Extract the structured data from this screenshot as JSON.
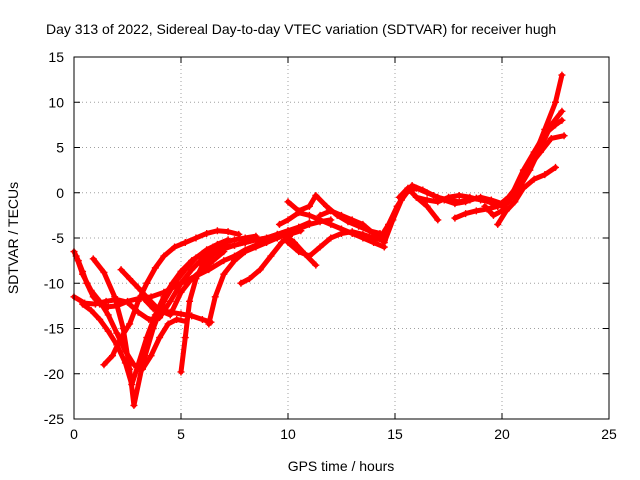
{
  "chart_data": {
    "type": "scatter",
    "title": "Day 313 of 2022, Sidereal Day-to-day VTEC variation (SDTVAR) for receiver hugh",
    "xlabel": "GPS time / hours",
    "ylabel": "SDTVAR / TECUs",
    "xlim": [
      0,
      25
    ],
    "ylim": [
      -25,
      15
    ],
    "xticks": [
      0,
      5,
      10,
      15,
      20,
      25
    ],
    "yticks": [
      -25,
      -20,
      -15,
      -10,
      -5,
      0,
      5,
      10,
      15
    ],
    "grid": true,
    "marker": "+",
    "color": "#ff0000",
    "series": [
      {
        "x": [
          0.0,
          0.2,
          0.4,
          0.6,
          0.9,
          1.2,
          1.6,
          2.0,
          2.5,
          3.0,
          3.6,
          4.2,
          5.0,
          5.7,
          6.3,
          7.0,
          7.5,
          8.0,
          8.5,
          9.0,
          9.5,
          10.0,
          10.5
        ],
        "y": [
          -6.5,
          -7.5,
          -8.7,
          -10.0,
          -11.5,
          -12.3,
          -12.6,
          -12.5,
          -12.0,
          -11.7,
          -11.5,
          -11.0,
          -10.0,
          -9.2,
          -8.5,
          -7.5,
          -7.0,
          -6.3,
          -5.8,
          -5.3,
          -5.0,
          -4.5,
          -4.0
        ]
      },
      {
        "x": [
          0.0,
          0.5,
          1.0,
          1.5,
          2.0,
          2.5,
          3.0,
          3.5,
          4.0,
          4.5,
          5.0,
          5.5,
          6.0,
          6.5,
          7.0,
          7.5,
          8.0,
          8.5,
          9.0,
          9.5,
          10.0
        ],
        "y": [
          -11.5,
          -12.2,
          -12.3,
          -12.0,
          -11.8,
          -12.1,
          -13.2,
          -14.0,
          -13.8,
          -12.0,
          -10.0,
          -8.5,
          -7.3,
          -6.5,
          -6.0,
          -5.8,
          -5.5,
          -5.2,
          -5.0,
          -4.6,
          -4.2
        ]
      },
      {
        "x": [
          0.1,
          0.4,
          0.8,
          1.2,
          1.6,
          2.0,
          2.4,
          2.8,
          3.2,
          3.6,
          4.0,
          4.4,
          4.8,
          5.2
        ],
        "y": [
          -7.0,
          -9.0,
          -10.8,
          -12.0,
          -13.5,
          -15.5,
          -17.5,
          -19.0,
          -19.5,
          -18.0,
          -16.0,
          -14.5,
          -14.0,
          -14.2
        ]
      },
      {
        "x": [
          0.4,
          0.8,
          1.2,
          1.6,
          2.0,
          2.4,
          2.7,
          3.0,
          3.4,
          3.8,
          4.2,
          4.6,
          5.0,
          5.5,
          6.0,
          6.5,
          7.0,
          7.5,
          8.0,
          8.5
        ],
        "y": [
          -12.3,
          -13.0,
          -14.0,
          -15.3,
          -16.8,
          -18.8,
          -21.2,
          -19.0,
          -16.0,
          -13.5,
          -11.5,
          -10.0,
          -8.7,
          -7.5,
          -6.7,
          -6.0,
          -5.5,
          -5.2,
          -5.0,
          -4.8
        ]
      },
      {
        "x": [
          0.9,
          1.4,
          1.9,
          2.3,
          2.6,
          2.8,
          3.2,
          3.7,
          4.2,
          4.7,
          5.2,
          5.7,
          6.2,
          6.7,
          7.2
        ],
        "y": [
          -7.3,
          -8.8,
          -11.5,
          -15.0,
          -19.5,
          -23.5,
          -19.0,
          -15.0,
          -12.0,
          -10.0,
          -8.5,
          -7.2,
          -6.3,
          -5.7,
          -5.2
        ]
      },
      {
        "x": [
          1.4,
          1.8,
          2.2,
          2.6,
          3.0,
          3.4,
          3.8,
          4.2,
          4.7,
          5.2,
          5.7,
          6.2,
          6.7,
          7.2,
          7.7
        ],
        "y": [
          -19.0,
          -18.0,
          -16.0,
          -14.5,
          -12.0,
          -10.0,
          -8.3,
          -7.0,
          -6.0,
          -5.5,
          -5.0,
          -4.5,
          -4.2,
          -4.3,
          -4.6
        ]
      },
      {
        "x": [
          2.2,
          2.6,
          3.0,
          3.5,
          4.0,
          4.5,
          5.0,
          5.5,
          6.0,
          6.5,
          7.0
        ],
        "y": [
          -8.5,
          -9.5,
          -10.5,
          -11.8,
          -13.0,
          -13.5,
          -11.0,
          -9.5,
          -8.5,
          -7.5,
          -6.5
        ]
      },
      {
        "x": [
          3.3,
          3.7,
          4.1,
          4.5,
          5.0,
          5.5,
          6.0,
          6.4
        ],
        "y": [
          -11.8,
          -12.8,
          -13.0,
          -13.2,
          -13.4,
          -13.6,
          -14.0,
          -14.3
        ]
      },
      {
        "x": [
          5.0,
          5.2,
          5.4,
          5.7,
          6.0,
          6.5,
          7.0,
          7.5,
          8.0,
          8.5,
          9.0,
          9.5,
          10.0,
          10.5,
          11.0
        ],
        "y": [
          -19.8,
          -16.0,
          -12.0,
          -9.5,
          -8.0,
          -6.8,
          -6.2,
          -5.8,
          -5.5,
          -5.2,
          -5.0,
          -4.6,
          -4.2,
          -3.8,
          -3.3
        ]
      },
      {
        "x": [
          6.3,
          6.6,
          7.0,
          7.5,
          8.0,
          8.5,
          9.0,
          9.5,
          10.0,
          10.5,
          11.0,
          11.5,
          12.0
        ],
        "y": [
          -14.5,
          -11.5,
          -9.0,
          -7.5,
          -6.5,
          -6.0,
          -5.5,
          -5.0,
          -4.5,
          -4.0,
          -3.5,
          -3.2,
          -3.0
        ]
      },
      {
        "x": [
          7.8,
          8.2,
          8.7,
          9.2,
          9.7,
          10.2,
          10.6
        ],
        "y": [
          -10.0,
          -9.5,
          -8.5,
          -7.0,
          -5.5,
          -4.5,
          -4.2
        ]
      },
      {
        "x": [
          9.6,
          10.0,
          10.5,
          11.0,
          11.5,
          12.0,
          12.5,
          13.0,
          13.5,
          14.0,
          14.5
        ],
        "y": [
          -3.5,
          -3.0,
          -2.2,
          -2.5,
          -3.0,
          -3.5,
          -4.0,
          -4.5,
          -5.0,
          -5.5,
          -6.0
        ]
      },
      {
        "x": [
          10.0,
          10.5,
          11.0,
          11.5,
          12.0,
          12.5,
          13.0,
          13.5,
          14.0,
          14.5
        ],
        "y": [
          -5.5,
          -6.5,
          -7.0,
          -6.0,
          -5.0,
          -4.5,
          -4.3,
          -4.6,
          -5.0,
          -5.3
        ]
      },
      {
        "x": [
          9.3,
          9.8,
          10.3,
          10.8,
          11.3
        ],
        "y": [
          -5.0,
          -4.5,
          -5.5,
          -6.8,
          -8.0
        ]
      },
      {
        "x": [
          10.0,
          10.5,
          11.0,
          11.3,
          11.8,
          12.3,
          12.8,
          13.3,
          13.8,
          14.3
        ],
        "y": [
          -1.0,
          -2.0,
          -1.5,
          -0.3,
          -1.5,
          -2.5,
          -3.2,
          -3.7,
          -4.2,
          -4.5
        ]
      },
      {
        "x": [
          11.5,
          12.0,
          12.5,
          13.0,
          13.5,
          14.0,
          14.5
        ],
        "y": [
          -2.5,
          -2.0,
          -2.5,
          -3.0,
          -3.5,
          -4.5,
          -5.0
        ]
      },
      {
        "x": [
          14.3,
          14.7,
          15.1,
          15.5,
          16.0,
          16.5,
          17.0,
          17.5,
          18.0,
          18.5,
          19.0,
          19.5,
          20.0,
          20.5,
          21.0,
          21.5,
          22.0,
          22.5,
          22.8
        ],
        "y": [
          -5.0,
          -3.5,
          -1.5,
          0.0,
          0.5,
          0.0,
          -0.5,
          -0.8,
          -1.0,
          -0.8,
          -0.5,
          -0.8,
          -1.2,
          -0.5,
          1.5,
          4.0,
          7.0,
          10.0,
          13.0
        ]
      },
      {
        "x": [
          14.5,
          14.9,
          15.3,
          15.8,
          16.3,
          16.8,
          17.3,
          17.8,
          18.3,
          18.8,
          19.3,
          19.8,
          20.3,
          20.8,
          21.3,
          21.8,
          22.3,
          22.8
        ],
        "y": [
          -5.5,
          -3.0,
          -0.8,
          0.8,
          0.3,
          -0.3,
          -0.8,
          -1.2,
          -1.0,
          -0.6,
          -0.9,
          -1.5,
          -1.0,
          0.5,
          2.5,
          5.0,
          7.5,
          9.0
        ]
      },
      {
        "x": [
          15.2,
          15.6,
          16.0,
          16.5,
          17.0
        ],
        "y": [
          -0.5,
          0.5,
          -0.5,
          -1.5,
          -3.0
        ]
      },
      {
        "x": [
          16.0,
          16.5,
          17.0,
          17.5,
          18.0,
          18.5,
          19.0,
          19.5,
          20.0
        ],
        "y": [
          -0.5,
          -0.8,
          -1.0,
          -0.5,
          -0.3,
          -0.5,
          -0.8,
          -1.0,
          -1.5
        ]
      },
      {
        "x": [
          17.8,
          18.3,
          18.8,
          19.3,
          19.8,
          20.3,
          20.8,
          21.3,
          21.8,
          22.3,
          22.9
        ],
        "y": [
          -2.8,
          -2.3,
          -2.0,
          -1.8,
          -1.5,
          -0.5,
          1.0,
          3.0,
          4.5,
          6.0,
          6.3
        ]
      },
      {
        "x": [
          19.8,
          20.2,
          20.6,
          21.0,
          21.5,
          22.0,
          22.5
        ],
        "y": [
          -3.5,
          -2.0,
          -1.0,
          0.5,
          1.5,
          2.0,
          2.8
        ]
      },
      {
        "x": [
          19.2,
          19.6,
          20.0,
          20.5,
          21.0,
          21.5,
          22.0,
          22.5,
          22.8
        ],
        "y": [
          -1.5,
          -2.5,
          -2.0,
          0.0,
          2.5,
          4.5,
          6.5,
          7.5,
          8.0
        ]
      }
    ]
  }
}
